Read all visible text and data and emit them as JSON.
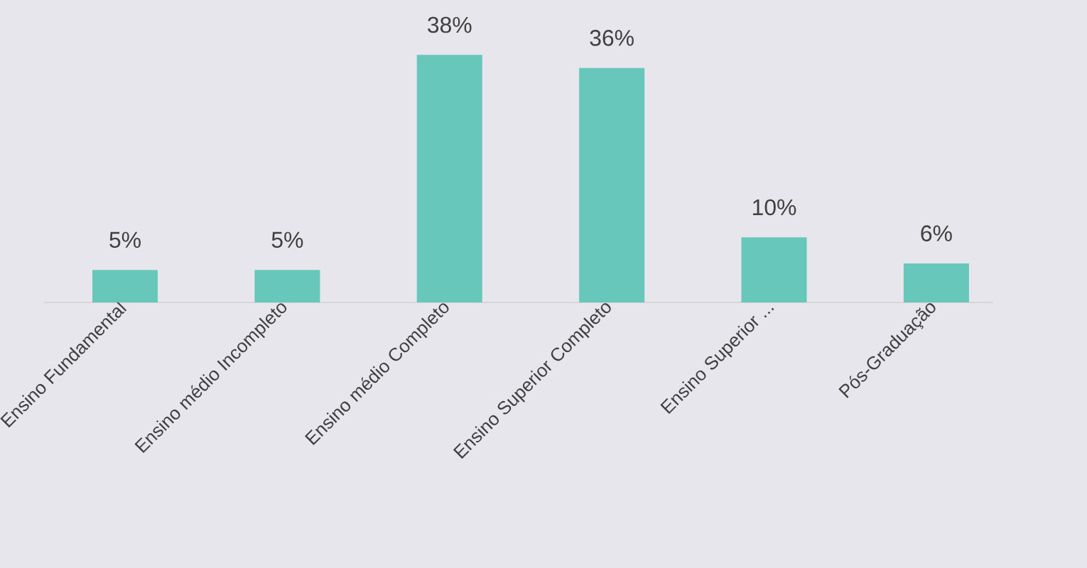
{
  "chart_data": {
    "type": "bar",
    "categories": [
      "Ensino Fundamental",
      "Ensino médio Incompleto",
      "Ensino médio Completo",
      "Ensino Superior Completo",
      "Ensino Superior ...",
      "Pós-Graduação"
    ],
    "values": [
      5,
      5,
      38,
      36,
      10,
      6
    ],
    "value_labels": [
      "5%",
      "5%",
      "38%",
      "36%",
      "10%",
      "6%"
    ],
    "color": "#67c7bb"
  }
}
